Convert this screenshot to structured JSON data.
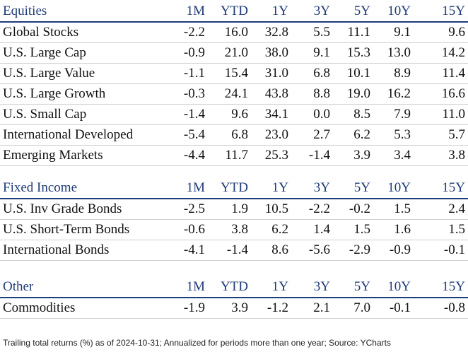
{
  "chart_data": {
    "type": "table",
    "columns": [
      "1M",
      "YTD",
      "1Y",
      "3Y",
      "5Y",
      "10Y",
      "15Y"
    ],
    "sections": [
      {
        "title": "Equities",
        "rows": [
          {
            "label": "Global Stocks",
            "values": [
              "-2.2",
              "16.0",
              "32.8",
              "5.5",
              "11.1",
              "9.1",
              "9.6"
            ]
          },
          {
            "label": "U.S. Large Cap",
            "values": [
              "-0.9",
              "21.0",
              "38.0",
              "9.1",
              "15.3",
              "13.0",
              "14.2"
            ]
          },
          {
            "label": "U.S. Large Value",
            "values": [
              "-1.1",
              "15.4",
              "31.0",
              "6.8",
              "10.1",
              "8.9",
              "11.4"
            ]
          },
          {
            "label": "U.S. Large Growth",
            "values": [
              "-0.3",
              "24.1",
              "43.8",
              "8.8",
              "19.0",
              "16.2",
              "16.6"
            ]
          },
          {
            "label": "U.S. Small Cap",
            "values": [
              "-1.4",
              "9.6",
              "34.1",
              "0.0",
              "8.5",
              "7.9",
              "11.0"
            ]
          },
          {
            "label": "International Developed",
            "values": [
              "-5.4",
              "6.8",
              "23.0",
              "2.7",
              "6.2",
              "5.3",
              "5.7"
            ]
          },
          {
            "label": "Emerging Markets",
            "values": [
              "-4.4",
              "11.7",
              "25.3",
              "-1.4",
              "3.9",
              "3.4",
              "3.8"
            ]
          }
        ]
      },
      {
        "title": "Fixed Income",
        "rows": [
          {
            "label": "U.S. Inv Grade Bonds",
            "values": [
              "-2.5",
              "1.9",
              "10.5",
              "-2.2",
              "-0.2",
              "1.5",
              "2.4"
            ]
          },
          {
            "label": "U.S. Short-Term Bonds",
            "values": [
              "-0.6",
              "3.8",
              "6.2",
              "1.4",
              "1.5",
              "1.6",
              "1.5"
            ]
          },
          {
            "label": "International Bonds",
            "values": [
              "-4.1",
              "-1.4",
              "8.6",
              "-5.6",
              "-2.9",
              "-0.9",
              "-0.1"
            ]
          }
        ]
      },
      {
        "title": "Other",
        "rows": [
          {
            "label": "Commodities",
            "values": [
              "-1.9",
              "3.9",
              "-1.2",
              "2.1",
              "7.0",
              "-0.1",
              "-0.8"
            ]
          }
        ]
      }
    ],
    "footnote": "Trailing total returns (%) as of 2024-10-31; Annualized for periods more than one year; Source: YCharts"
  },
  "colors": {
    "header_text": "#1f3b78",
    "header_rule": "#1f3b78",
    "row_rule": "#cfcfcf",
    "body_text": "#111111"
  }
}
